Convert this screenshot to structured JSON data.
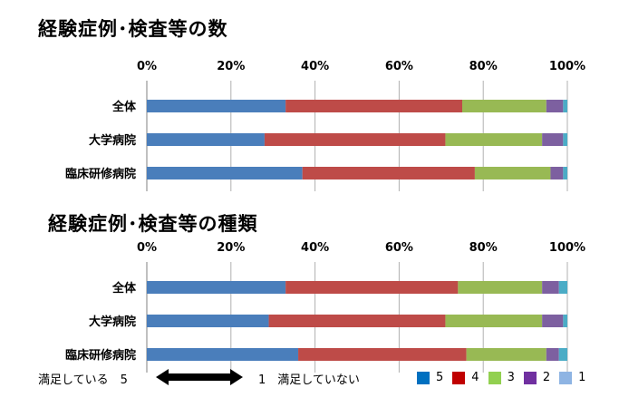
{
  "chart_data": [
    {
      "type": "stacked-bar-horizontal",
      "title": "経験症例･検査等の数",
      "x_ticks": [
        "0%",
        "20%",
        "40%",
        "60%",
        "80%",
        "100%"
      ],
      "xlim": [
        0,
        100
      ],
      "categories": [
        "全体",
        "大学病院",
        "臨床研修病院"
      ],
      "series": [
        {
          "name": "5",
          "values": [
            33,
            28,
            37
          ]
        },
        {
          "name": "4",
          "values": [
            42,
            43,
            41
          ]
        },
        {
          "name": "3",
          "values": [
            20,
            23,
            18
          ]
        },
        {
          "name": "2",
          "values": [
            4,
            5,
            3
          ]
        },
        {
          "name": "1",
          "values": [
            1,
            1,
            1
          ]
        }
      ]
    },
    {
      "type": "stacked-bar-horizontal",
      "title": "経験症例･検査等の種類",
      "x_ticks": [
        "0%",
        "20%",
        "40%",
        "60%",
        "80%",
        "100%"
      ],
      "xlim": [
        0,
        100
      ],
      "categories": [
        "全体",
        "大学病院",
        "臨床研修病院"
      ],
      "series": [
        {
          "name": "5",
          "values": [
            33,
            29,
            36
          ]
        },
        {
          "name": "4",
          "values": [
            41,
            42,
            40
          ]
        },
        {
          "name": "3",
          "values": [
            20,
            23,
            19
          ]
        },
        {
          "name": "2",
          "values": [
            4,
            5,
            3
          ]
        },
        {
          "name": "1",
          "values": [
            2,
            1,
            2
          ]
        }
      ]
    }
  ],
  "colors": [
    "#4a7ebb",
    "#be4b48",
    "#98b954",
    "#7d60a0",
    "#4bacc6"
  ],
  "legend": {
    "items": [
      {
        "label": "5",
        "color": "#0070c0"
      },
      {
        "label": "4",
        "color": "#c00000"
      },
      {
        "label": "3",
        "color": "#92d050"
      },
      {
        "label": "2",
        "color": "#7030a0"
      },
      {
        "label": "1",
        "color": "#8eb4e3"
      }
    ]
  },
  "scale_note": {
    "left": "満足している　5",
    "right": "1　満足していない"
  }
}
